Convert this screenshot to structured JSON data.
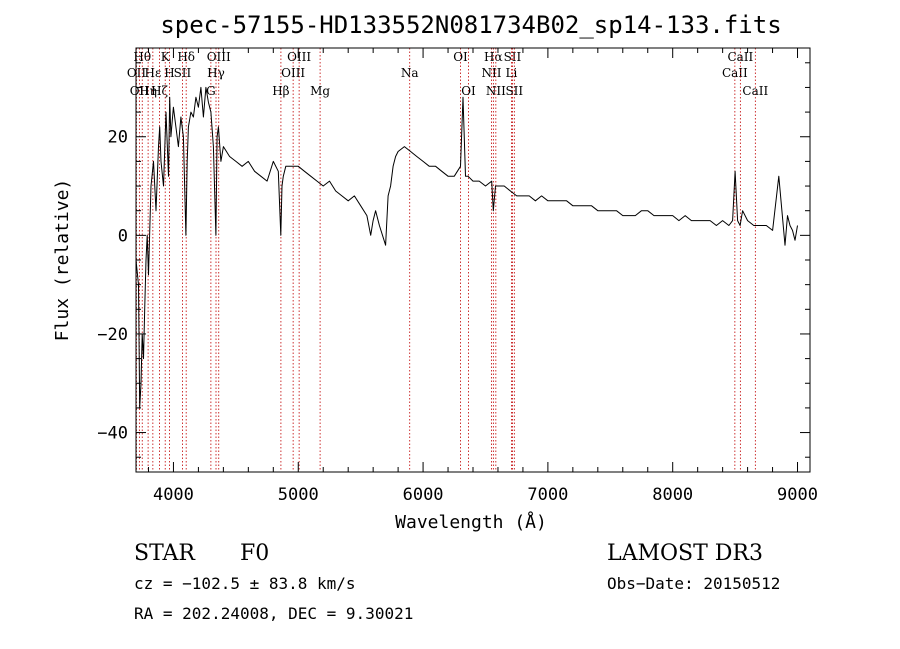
{
  "chart_data": {
    "type": "line",
    "title": "spec-57155-HD133552N081734B02_sp14-133.fits",
    "xlabel": "Wavelength (Å)",
    "ylabel": "Flux (relative)",
    "xlim": [
      3700,
      9100
    ],
    "ylim": [
      -48,
      38
    ],
    "xticks": [
      4000,
      5000,
      6000,
      7000,
      8000,
      9000
    ],
    "yticks": [
      -40,
      -20,
      0,
      20
    ],
    "series": [
      {
        "name": "spectrum",
        "x": [
          3700,
          3720,
          3730,
          3740,
          3750,
          3760,
          3770,
          3780,
          3790,
          3800,
          3820,
          3840,
          3860,
          3880,
          3890,
          3900,
          3920,
          3940,
          3960,
          3970,
          3980,
          4000,
          4020,
          4040,
          4060,
          4080,
          4100,
          4110,
          4120,
          4140,
          4160,
          4180,
          4200,
          4220,
          4240,
          4260,
          4280,
          4300,
          4320,
          4340,
          4350,
          4360,
          4380,
          4400,
          4450,
          4500,
          4550,
          4600,
          4650,
          4700,
          4750,
          4800,
          4840,
          4860,
          4870,
          4880,
          4900,
          4950,
          5000,
          5050,
          5100,
          5150,
          5200,
          5250,
          5300,
          5350,
          5400,
          5450,
          5500,
          5550,
          5580,
          5600,
          5620,
          5650,
          5700,
          5720,
          5740,
          5760,
          5780,
          5800,
          5850,
          5900,
          5950,
          6000,
          6050,
          6100,
          6150,
          6200,
          6250,
          6300,
          6320,
          6340,
          6360,
          6400,
          6450,
          6500,
          6550,
          6563,
          6580,
          6600,
          6650,
          6700,
          6750,
          6800,
          6850,
          6900,
          6950,
          7000,
          7050,
          7100,
          7150,
          7200,
          7250,
          7300,
          7350,
          7400,
          7450,
          7500,
          7550,
          7600,
          7650,
          7700,
          7750,
          7800,
          7850,
          7900,
          7950,
          8000,
          8050,
          8100,
          8150,
          8200,
          8250,
          8300,
          8350,
          8400,
          8450,
          8480,
          8500,
          8520,
          8540,
          8560,
          8600,
          8650,
          8662,
          8700,
          8750,
          8800,
          8850,
          8900,
          8920,
          8940,
          8960,
          8980,
          9000
        ],
        "y": [
          -5,
          -10,
          -35,
          -30,
          -20,
          -25,
          -15,
          -5,
          0,
          -8,
          10,
          15,
          5,
          18,
          22,
          15,
          10,
          25,
          12,
          28,
          20,
          26,
          22,
          18,
          24,
          20,
          0,
          15,
          22,
          25,
          24,
          28,
          26,
          30,
          24,
          30,
          27,
          25,
          18,
          0,
          20,
          22,
          15,
          18,
          16,
          15,
          14,
          15,
          13,
          12,
          11,
          15,
          13,
          0,
          10,
          12,
          14,
          14,
          14,
          13,
          12,
          11,
          10,
          11,
          9,
          8,
          7,
          8,
          6,
          4,
          0,
          3,
          5,
          2,
          -2,
          8,
          10,
          14,
          16,
          17,
          18,
          17,
          16,
          15,
          14,
          14,
          13,
          12,
          12,
          14,
          28,
          12,
          12,
          11,
          11,
          10,
          11,
          5,
          10,
          10,
          10,
          9,
          8,
          8,
          8,
          7,
          8,
          7,
          7,
          7,
          7,
          6,
          6,
          6,
          6,
          5,
          5,
          5,
          5,
          4,
          4,
          4,
          5,
          5,
          4,
          4,
          4,
          4,
          3,
          4,
          3,
          3,
          3,
          3,
          2,
          3,
          2,
          3,
          13,
          3,
          2,
          5,
          3,
          2,
          2,
          2,
          2,
          1,
          12,
          -2,
          4,
          2,
          1,
          -1,
          2
        ]
      }
    ],
    "line_markers": [
      {
        "wl": 3704,
        "label": "OII",
        "row": 2
      },
      {
        "wl": 3727,
        "label": "OII",
        "row": 3
      },
      {
        "wl": 3750,
        "label": "Hθ",
        "row": 1
      },
      {
        "wl": 3797,
        "label": "Hη",
        "row": 3
      },
      {
        "wl": 3835,
        "label": "Hε",
        "row": 2
      },
      {
        "wl": 3889,
        "label": "Hζ",
        "row": 3
      },
      {
        "wl": 3934,
        "label": "K",
        "row": 1
      },
      {
        "wl": 3968,
        "label": "H",
        "row": 2
      },
      {
        "wl": 4072,
        "label": "SII",
        "row": 2
      },
      {
        "wl": 4102,
        "label": "Hδ",
        "row": 1
      },
      {
        "wl": 4300,
        "label": "G",
        "row": 3
      },
      {
        "wl": 4341,
        "label": "Hγ",
        "row": 2
      },
      {
        "wl": 4363,
        "label": "OIII",
        "row": 1
      },
      {
        "wl": 4861,
        "label": "Hβ",
        "row": 3
      },
      {
        "wl": 4959,
        "label": "OIII",
        "row": 2
      },
      {
        "wl": 5007,
        "label": "OIII",
        "row": 1
      },
      {
        "wl": 5175,
        "label": "Mg",
        "row": 3
      },
      {
        "wl": 5893,
        "label": "Na",
        "row": 2
      },
      {
        "wl": 6300,
        "label": "OI",
        "row": 1
      },
      {
        "wl": 6364,
        "label": "OI",
        "row": 3
      },
      {
        "wl": 6548,
        "label": "NII",
        "row": 2
      },
      {
        "wl": 6563,
        "label": "Hα",
        "row": 1
      },
      {
        "wl": 6583,
        "label": "NII",
        "row": 3
      },
      {
        "wl": 6708,
        "label": "Li",
        "row": 2
      },
      {
        "wl": 6716,
        "label": "SII",
        "row": 1
      },
      {
        "wl": 6731,
        "label": "SII",
        "row": 3
      },
      {
        "wl": 8498,
        "label": "CaII",
        "row": 2
      },
      {
        "wl": 8542,
        "label": "CaII",
        "row": 1
      },
      {
        "wl": 8662,
        "label": "CaII",
        "row": 3
      }
    ]
  },
  "info": {
    "class_label": "STAR",
    "subclass": "F0",
    "survey": "LAMOST DR3",
    "cz": "cz = −102.5 ± 83.8 km/s",
    "obs_date": "Obs−Date: 20150512",
    "coords": "RA = 202.24008, DEC =   9.30021"
  },
  "colors": {
    "line": "#000000",
    "marker": "#c00000",
    "axis": "#000000"
  }
}
